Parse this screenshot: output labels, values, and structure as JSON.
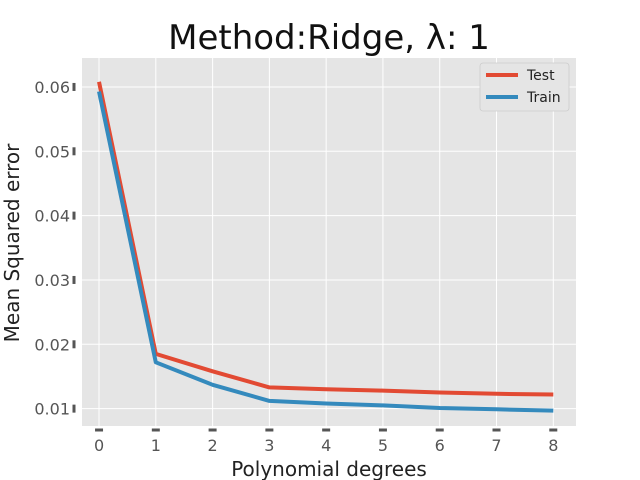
{
  "chart_data": {
    "type": "line",
    "title": "Method:Ridge, λ: 1",
    "xlabel": "Polynomial degrees",
    "ylabel": "Mean Squared error",
    "x": [
      0,
      1,
      2,
      3,
      4,
      5,
      6,
      7,
      8
    ],
    "xticks": [
      "0",
      "1",
      "2",
      "3",
      "4",
      "5",
      "6",
      "7",
      "8"
    ],
    "yticks": [
      "0.01",
      "0.02",
      "0.03",
      "0.04",
      "0.05",
      "0.06"
    ],
    "xlim": [
      -0.3,
      8.4
    ],
    "ylim": [
      0.0073,
      0.0645
    ],
    "grid": true,
    "legend_position": "top-right",
    "series": [
      {
        "name": "Test",
        "color": "#E24A33",
        "values": [
          0.0608,
          0.0185,
          0.0158,
          0.0133,
          0.013,
          0.0128,
          0.0125,
          0.0123,
          0.0122
        ]
      },
      {
        "name": "Train",
        "color": "#348ABD",
        "values": [
          0.0593,
          0.0172,
          0.0137,
          0.0112,
          0.0108,
          0.0105,
          0.0101,
          0.0099,
          0.0097
        ]
      }
    ]
  }
}
